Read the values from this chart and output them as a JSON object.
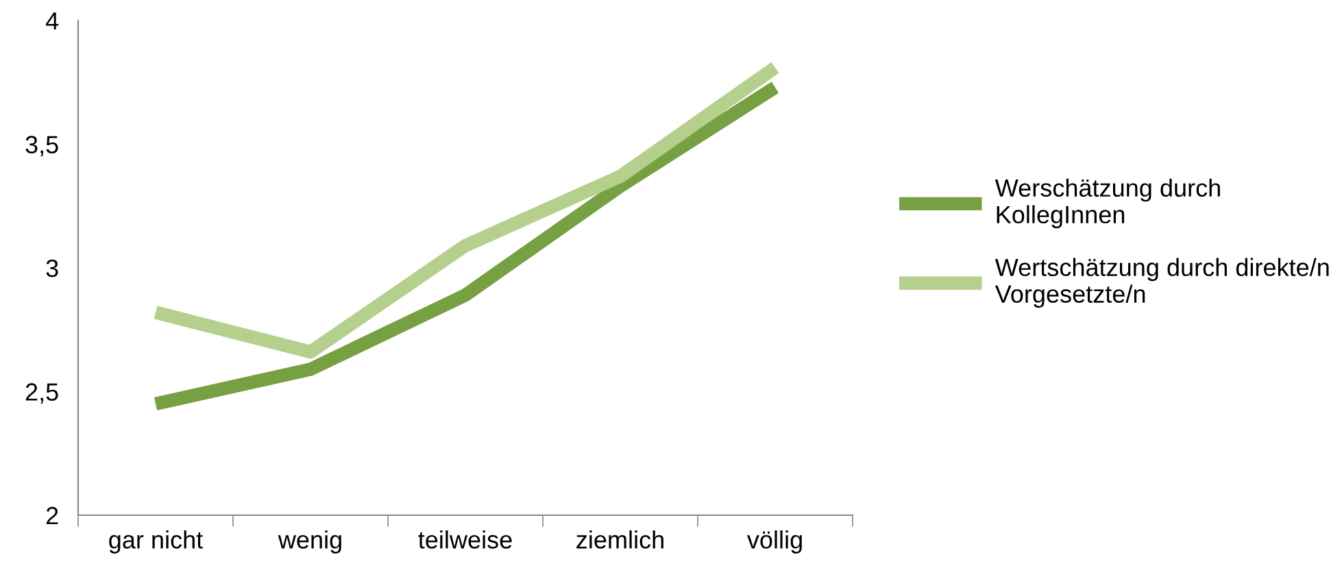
{
  "chart_data": {
    "type": "line",
    "categories": [
      "gar nicht",
      "wenig",
      "teilweise",
      "ziemlich",
      "völlig"
    ],
    "series": [
      {
        "name": "Werschätzung durch\nKollegInnen",
        "color": "#77a043",
        "values": [
          2.45,
          2.59,
          2.89,
          3.33,
          3.73
        ]
      },
      {
        "name": "Wertschätzung durch direkte/n\nVorgesetzte/n",
        "color": "#b5cf8d",
        "values": [
          2.82,
          2.66,
          3.09,
          3.37,
          3.81
        ]
      }
    ],
    "ylim": [
      2,
      4
    ],
    "yticks": [
      {
        "value": 2,
        "label": "2"
      },
      {
        "value": 2.5,
        "label": "2,5"
      },
      {
        "value": 3,
        "label": "3"
      },
      {
        "value": 3.5,
        "label": "3,5"
      },
      {
        "value": 4,
        "label": "4"
      }
    ],
    "grid": false,
    "legend": "right",
    "marker": "none",
    "line_style": "solid"
  }
}
